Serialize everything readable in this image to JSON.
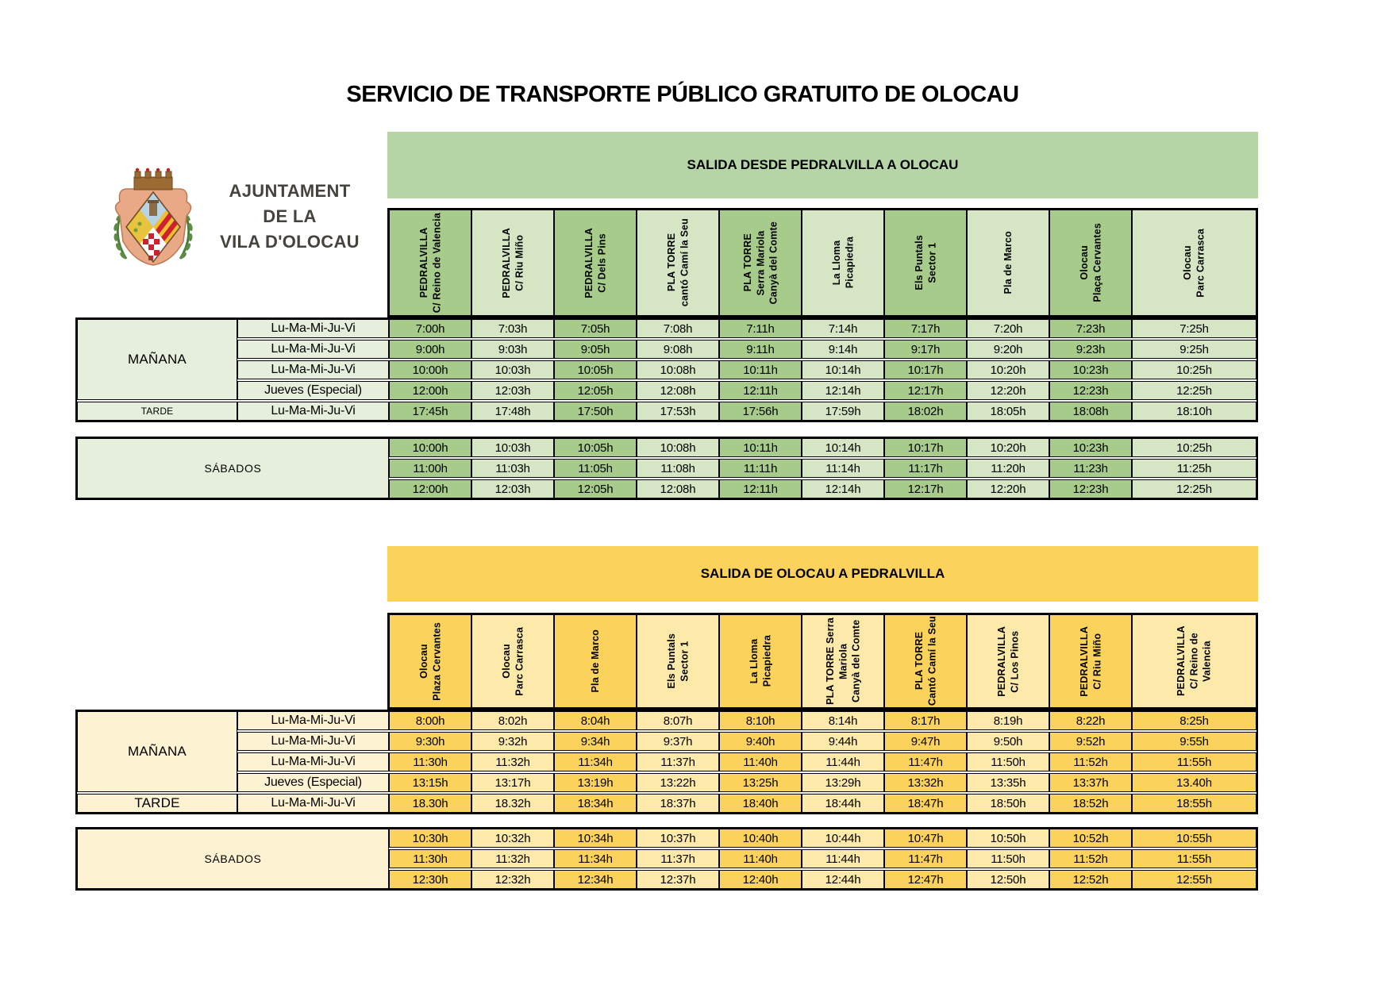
{
  "page": {
    "title": "SERVICIO DE TRANSPORTE PÚBLICO GRATUITO DE OLOCAU"
  },
  "logo": {
    "lines": [
      "AJUNTAMENT",
      "DE LA",
      "VILA D'OLOCAU"
    ]
  },
  "colors": {
    "green": {
      "banner": "#b5d5a7",
      "dark": "#a7cb8b",
      "light": "#d6e6c5",
      "label": "#e5efdc"
    },
    "yellow": {
      "banner": "#fbd35c",
      "dark": "#fbd35c",
      "light": "#fde9a9",
      "label": "#fdf2d2"
    }
  },
  "tables": [
    {
      "key": "green",
      "banner": "SALIDA DESDE PEDRALVILLA A OLOCAU",
      "columns": [
        {
          "lines": [
            "PEDRALVILLA",
            "C/ Reino de Valencia"
          ],
          "head": "dark",
          "cell": "dark"
        },
        {
          "lines": [
            "PEDRALVILLA",
            "C/ Riu Miño"
          ],
          "head": "light",
          "cell": "light"
        },
        {
          "lines": [
            "PEDRALVILLA",
            "C/ Dels Pins"
          ],
          "head": "dark",
          "cell": "dark"
        },
        {
          "lines": [
            "PLA TORRE",
            "cantó Camí la Seu"
          ],
          "head": "light",
          "cell": "light"
        },
        {
          "lines": [
            "PLA TORRE",
            "Serra Mariola",
            "Canyà del Comte"
          ],
          "head": "dark",
          "cell": "dark"
        },
        {
          "lines": [
            "La Lloma",
            "Picapiedra"
          ],
          "head": "light",
          "cell": "light"
        },
        {
          "lines": [
            "Els Puntals",
            "Sector 1"
          ],
          "head": "dark",
          "cell": "dark"
        },
        {
          "lines": [
            "Pla de Marco"
          ],
          "head": "light",
          "cell": "light"
        },
        {
          "lines": [
            "Olocau",
            "Plaça Cervantes"
          ],
          "head": "dark",
          "cell": "dark"
        },
        {
          "lines": [
            "Olocau",
            "Parc Carrasca"
          ],
          "head": "light",
          "cell": "light"
        }
      ],
      "labels": {
        "manana": "MAÑANA",
        "tarde": "TARDE",
        "sabados": "SÁBADOS"
      },
      "weekday_rows": [
        {
          "days": "Lu-Ma-Mi-Ju-Vi",
          "times": [
            "7:00h",
            "7:03h",
            "7:05h",
            "7:08h",
            "7:11h",
            "7:14h",
            "7:17h",
            "7:20h",
            "7:23h",
            "7:25h"
          ]
        },
        {
          "days": "Lu-Ma-Mi-Ju-Vi",
          "times": [
            "9:00h",
            "9:03h",
            "9:05h",
            "9:08h",
            "9:11h",
            "9:14h",
            "9:17h",
            "9:20h",
            "9:23h",
            "9:25h"
          ]
        },
        {
          "days": "Lu-Ma-Mi-Ju-Vi",
          "times": [
            "10:00h",
            "10:03h",
            "10:05h",
            "10:08h",
            "10:11h",
            "10:14h",
            "10:17h",
            "10:20h",
            "10:23h",
            "10:25h"
          ]
        },
        {
          "days": "Jueves (Especial)",
          "times": [
            "12:00h",
            "12:03h",
            "12:05h",
            "12:08h",
            "12:11h",
            "12:14h",
            "12:17h",
            "12:20h",
            "12:23h",
            "12:25h"
          ]
        },
        {
          "days": "Lu-Ma-Mi-Ju-Vi",
          "times": [
            "17:45h",
            "17:48h",
            "17:50h",
            "17:53h",
            "17:56h",
            "17:59h",
            "18:02h",
            "18:05h",
            "18:08h",
            "18:10h"
          ]
        }
      ],
      "saturday_rows": [
        [
          "10:00h",
          "10:03h",
          "10:05h",
          "10:08h",
          "10:11h",
          "10:14h",
          "10:17h",
          "10:20h",
          "10:23h",
          "10:25h"
        ],
        [
          "11:00h",
          "11:03h",
          "11:05h",
          "11:08h",
          "11:11h",
          "11:14h",
          "11:17h",
          "11:20h",
          "11:23h",
          "11:25h"
        ],
        [
          "12:00h",
          "12:03h",
          "12:05h",
          "12:08h",
          "12:11h",
          "12:14h",
          "12:17h",
          "12:20h",
          "12:23h",
          "12:25h"
        ]
      ]
    },
    {
      "key": "yellow",
      "banner": "SALIDA DE OLOCAU A PEDRALVILLA",
      "columns": [
        {
          "lines": [
            "Olocau",
            "Plaza Cervantes"
          ],
          "head": "dark",
          "cell": "dark"
        },
        {
          "lines": [
            "Olocau",
            "Parc Carrasca"
          ],
          "head": "light",
          "cell": "light"
        },
        {
          "lines": [
            "Pla de Marco"
          ],
          "head": "dark",
          "cell": "dark"
        },
        {
          "lines": [
            "Els Puntals",
            "Sector 1"
          ],
          "head": "light",
          "cell": "light"
        },
        {
          "lines": [
            "La Lloma",
            "Picapiedra"
          ],
          "head": "dark",
          "cell": "dark"
        },
        {
          "lines": [
            "PLA TORRE Serra",
            "Mariola",
            "Canyà del Comte"
          ],
          "head": "light",
          "cell": "light"
        },
        {
          "lines": [
            "PLA TORRE",
            "Cantó Camí la Seu"
          ],
          "head": "dark",
          "cell": "dark"
        },
        {
          "lines": [
            "PEDRALVILLA",
            "C/ Los Pinos"
          ],
          "head": "light",
          "cell": "light"
        },
        {
          "lines": [
            "PEDRALVILLA",
            "C/ Riu Miño"
          ],
          "head": "dark",
          "cell": "dark"
        },
        {
          "lines": [
            "PEDRALVILLA",
            "C/ Reino de Valencia"
          ],
          "head": "light",
          "cell": "dark"
        }
      ],
      "labels": {
        "manana": "MAÑANA",
        "tarde": "TARDE",
        "sabados": "SÁBADOS"
      },
      "weekday_rows": [
        {
          "days": "Lu-Ma-Mi-Ju-Vi",
          "times": [
            "8:00h",
            "8:02h",
            "8:04h",
            "8:07h",
            "8:10h",
            "8:14h",
            "8:17h",
            "8:19h",
            "8:22h",
            "8:25h"
          ]
        },
        {
          "days": "Lu-Ma-Mi-Ju-Vi",
          "times": [
            "9:30h",
            "9:32h",
            "9:34h",
            "9:37h",
            "9:40h",
            "9:44h",
            "9:47h",
            "9:50h",
            "9:52h",
            "9:55h"
          ]
        },
        {
          "days": "Lu-Ma-Mi-Ju-Vi",
          "times": [
            "11:30h",
            "11:32h",
            "11:34h",
            "11:37h",
            "11:40h",
            "11:44h",
            "11:47h",
            "11:50h",
            "11:52h",
            "11:55h"
          ]
        },
        {
          "days": "Jueves (Especial)",
          "times": [
            "13:15h",
            "13:17h",
            "13:19h",
            "13:22h",
            "13:25h",
            "13:29h",
            "13:32h",
            "13:35h",
            "13:37h",
            "13.40h"
          ]
        },
        {
          "days": "Lu-Ma-Mi-Ju-Vi",
          "times": [
            "18.30h",
            "18.32h",
            "18:34h",
            "18:37h",
            "18:40h",
            "18:44h",
            "18:47h",
            "18:50h",
            "18:52h",
            "18:55h"
          ]
        }
      ],
      "saturday_rows": [
        [
          "10:30h",
          "10:32h",
          "10:34h",
          "10:37h",
          "10:40h",
          "10:44h",
          "10:47h",
          "10:50h",
          "10:52h",
          "10:55h"
        ],
        [
          "11:30h",
          "11:32h",
          "11:34h",
          "11:37h",
          "11:40h",
          "11:44h",
          "11:47h",
          "11:50h",
          "11:52h",
          "11:55h"
        ],
        [
          "12:30h",
          "12:32h",
          "12:34h",
          "12:37h",
          "12:40h",
          "12:44h",
          "12:47h",
          "12:50h",
          "12:52h",
          "12:55h"
        ]
      ]
    }
  ]
}
